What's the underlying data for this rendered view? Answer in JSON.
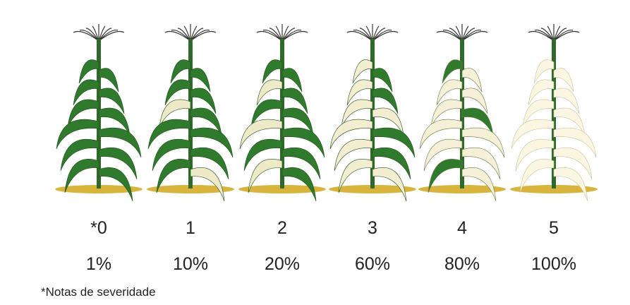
{
  "panels": [
    {
      "score": "*0",
      "percent": "1%"
    },
    {
      "score": "1",
      "percent": "10%"
    },
    {
      "score": "2",
      "percent": "20%"
    },
    {
      "score": "3",
      "percent": "60%"
    },
    {
      "score": "4",
      "percent": "80%"
    },
    {
      "score": "5",
      "percent": "100%"
    }
  ],
  "footnote": "*Notas de severidade"
}
